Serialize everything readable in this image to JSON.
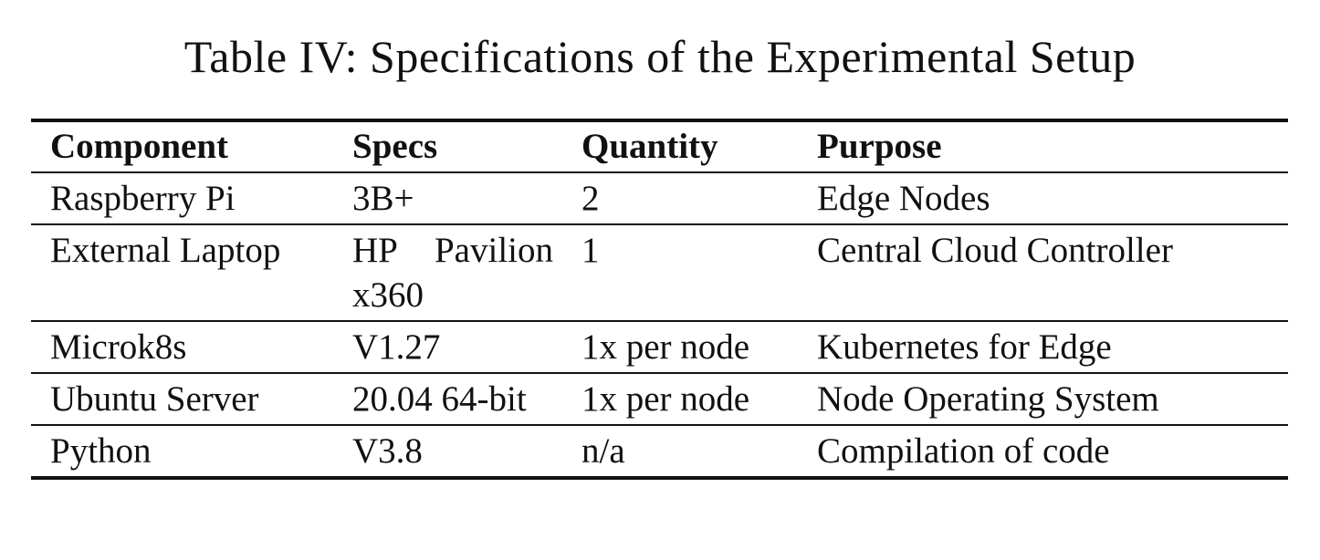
{
  "caption": "Table IV: Specifications of the Experimental Setup",
  "table": {
    "headers": [
      "Component",
      "Specs",
      "Quantity",
      "Purpose"
    ],
    "rows": [
      [
        "Raspberry Pi",
        "3B+",
        "2",
        "Edge Nodes"
      ],
      [
        "External Laptop",
        "HP Pavil­ion x360",
        "1",
        "Central Cloud Controller"
      ],
      [
        "Microk8s",
        "V1.27",
        "1x per node",
        "Kubernetes for Edge"
      ],
      [
        "Ubuntu Server",
        "20.04 64-bit",
        "1x per node",
        "Node Operating System"
      ],
      [
        "Python",
        "V3.8",
        "n/a",
        "Compilation of code"
      ]
    ]
  }
}
